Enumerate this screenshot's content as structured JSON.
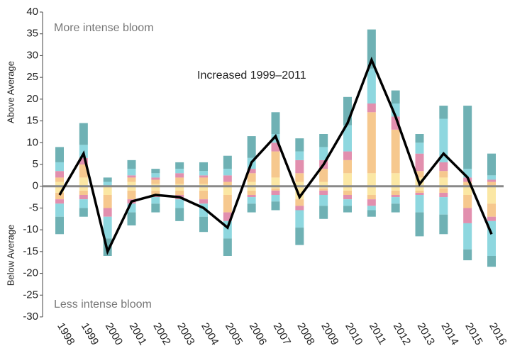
{
  "chart_data": {
    "type": "bar",
    "categories": [
      "1998",
      "1999",
      "2000",
      "2001",
      "2002",
      "2003",
      "2004",
      "2005",
      "2006",
      "2007",
      "2008",
      "2009",
      "2010",
      "2011",
      "2012",
      "2013",
      "2014",
      "2015",
      "2016"
    ],
    "series": [
      {
        "color": "#fbe7a4",
        "values": [
          1,
          2,
          0,
          1,
          0.5,
          0.5,
          0.5,
          0,
          1,
          2,
          1,
          1,
          3,
          3,
          3,
          2,
          2,
          0,
          0
        ]
      },
      {
        "color": "#f6c88e",
        "values": [
          1,
          3,
          0,
          1,
          1,
          1.5,
          1.5,
          1,
          2,
          6,
          2,
          3,
          3,
          14,
          10,
          1.5,
          1.5,
          1,
          1
        ]
      },
      {
        "color": "#e28fae",
        "values": [
          1.5,
          1.5,
          0,
          0.5,
          0.5,
          1,
          0.5,
          1.5,
          1,
          2,
          3,
          2,
          2,
          2,
          3,
          4,
          2,
          1,
          0.5
        ]
      },
      {
        "color": "#8ed7df",
        "values": [
          2,
          3,
          1,
          1.5,
          1,
          1,
          1,
          1.5,
          2.5,
          2,
          2,
          3,
          6,
          8,
          3,
          2.5,
          10,
          2,
          1
        ]
      },
      {
        "color": "#6fb1b4",
        "values": [
          3.5,
          5,
          1,
          2,
          1,
          1.5,
          2,
          3,
          5,
          5,
          3,
          3,
          6.5,
          9,
          3,
          2,
          3,
          14.5,
          5
        ]
      },
      {
        "color": "#fbe7a4",
        "values": [
          -1.5,
          -1,
          -2,
          -1,
          -1,
          -1,
          -1,
          -2,
          -1,
          -0.5,
          -3,
          -0.5,
          -1,
          -2,
          -1,
          -1,
          -0.5,
          -2,
          -4
        ]
      },
      {
        "color": "#f6c88e",
        "values": [
          -1.5,
          -1,
          -3,
          -2,
          -1,
          -1,
          -2,
          -4,
          -1,
          -0.5,
          -1.5,
          -0.5,
          -1,
          -1,
          -1,
          -0.5,
          -1,
          -3,
          -3
        ]
      },
      {
        "color": "#e28fae",
        "values": [
          -1,
          -1,
          -2,
          -1,
          -0.5,
          -1,
          -1,
          -2,
          -0.5,
          -1,
          -1,
          -1,
          -1,
          -1.5,
          -0.5,
          -0.5,
          -1,
          -3.5,
          -1
        ]
      },
      {
        "color": "#8ed7df",
        "values": [
          -3,
          -2,
          -5,
          -2,
          -1.5,
          -2,
          -3,
          -4,
          -1.5,
          -1.5,
          -4,
          -2.5,
          -1.5,
          -1,
          -1.5,
          -4,
          -4,
          -6,
          -8
        ]
      },
      {
        "color": "#6fb1b4",
        "values": [
          -4,
          -2,
          -4,
          -3,
          -2,
          -3,
          -3.5,
          -4,
          -2,
          -2,
          -4,
          -3,
          -1.5,
          -1.5,
          -2,
          -5.5,
          -4.5,
          -2.5,
          -2.5
        ]
      }
    ],
    "line": {
      "color": "#000000",
      "values": [
        -2,
        7.5,
        -15,
        -3.5,
        -2,
        -2.5,
        -5,
        -9.5,
        5.5,
        11.5,
        -2.5,
        5,
        14.5,
        29,
        16,
        0.5,
        7.5,
        2,
        -11
      ]
    },
    "ylim": [
      -30,
      40
    ],
    "yticks": [
      -30,
      -25,
      -20,
      -15,
      -10,
      -5,
      0,
      5,
      10,
      15,
      20,
      25,
      30,
      35,
      40
    ],
    "y_label_above": "Above Average",
    "y_label_below": "Below Average",
    "annotation_top": "More intense bloom",
    "annotation_bottom": "Less intense bloom",
    "annotation_line": "Increased 1999–2011"
  }
}
